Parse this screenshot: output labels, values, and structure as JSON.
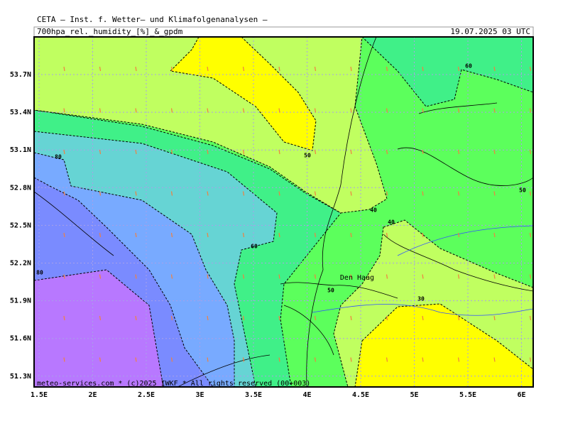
{
  "header": {
    "institute": "CETA — Inst. f. Wetter— und Klimafolgenanalysen —",
    "field": "700hpa_rel._humidity_[%]_&_gpdm",
    "valid_time": "19.07.2025 03 UTC"
  },
  "lat_labels": [
    "53.7N",
    "53.4N",
    "53.1N",
    "52.8N",
    "52.5N",
    "52.2N",
    "51.9N",
    "51.6N",
    "51.3N"
  ],
  "lon_labels": [
    "1.5E",
    "2E",
    "2.5E",
    "3E",
    "3.5E",
    "4E",
    "4.5E",
    "5E",
    "5.5E",
    "6E"
  ],
  "contour_labels": [
    "60",
    "50",
    "80",
    "40",
    "40",
    "50",
    "60",
    "50",
    "80",
    "30"
  ],
  "places": [
    "Den Haag"
  ],
  "footer": "meteo-services.com * (c)2025 IWKF * All rights reserved (00+003)"
}
